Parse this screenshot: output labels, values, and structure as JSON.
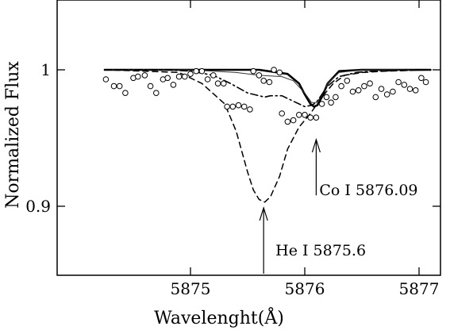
{
  "chart_data": {
    "type": "line",
    "title": "",
    "xlabel": "Wavelenght(Å)",
    "ylabel": "Normalized Flux",
    "xlim": [
      5874.25,
      5877.1
    ],
    "ylim": [
      0.845,
      1.05
    ],
    "x_ticks": [
      5875,
      5876,
      5877
    ],
    "x_tick_labels": [
      "5875",
      "5876",
      "5877"
    ],
    "y_ticks": [
      0.9,
      1.0
    ],
    "y_tick_labels": [
      "0.9",
      "1"
    ],
    "grid": false,
    "legend": "none",
    "series": [
      {
        "style": "solid-thick",
        "x": [
          5874.25,
          5875.0,
          5875.6,
          5875.85,
          5875.95,
          5876.0,
          5876.05,
          5876.08,
          5876.11,
          5876.15,
          5876.2,
          5876.3,
          5876.5,
          5877.1
        ],
        "y": [
          1.0,
          1.0,
          1.0,
          0.997,
          0.99,
          0.982,
          0.975,
          0.973,
          0.974,
          0.98,
          0.99,
          0.999,
          1.0,
          1.0
        ]
      },
      {
        "style": "solid-thin",
        "x": [
          5874.25,
          5875.0,
          5875.4,
          5875.6,
          5875.8,
          5875.9,
          5876.0,
          5876.06,
          5876.1,
          5876.15,
          5876.2,
          5876.3,
          5876.5,
          5877.1
        ],
        "y": [
          1.0,
          1.0,
          0.998,
          0.996,
          0.995,
          0.992,
          0.983,
          0.976,
          0.976,
          0.981,
          0.99,
          0.998,
          1.0,
          1.0
        ]
      },
      {
        "style": "dash-dot",
        "x": [
          5874.25,
          5874.8,
          5875.0,
          5875.2,
          5875.35,
          5875.5,
          5875.6,
          5875.65,
          5875.7,
          5875.8,
          5875.9,
          5876.0,
          5876.06,
          5876.1,
          5876.2,
          5876.3,
          5876.45,
          5876.6,
          5877.1
        ],
        "y": [
          1.0,
          1.0,
          0.999,
          0.996,
          0.99,
          0.983,
          0.981,
          0.98,
          0.981,
          0.981,
          0.977,
          0.973,
          0.974,
          0.976,
          0.988,
          0.995,
          0.998,
          0.999,
          1.0
        ]
      },
      {
        "style": "dashed",
        "x": [
          5874.25,
          5874.6,
          5874.9,
          5875.1,
          5875.3,
          5875.4,
          5875.5,
          5875.55,
          5875.6,
          5875.65,
          5875.7,
          5875.78,
          5875.85,
          5875.95,
          5876.05,
          5876.15,
          5876.25,
          5876.35,
          5876.5,
          5876.7,
          5877.1
        ],
        "y": [
          1.0,
          0.999,
          0.998,
          0.99,
          0.975,
          0.955,
          0.925,
          0.912,
          0.905,
          0.903,
          0.907,
          0.922,
          0.942,
          0.958,
          0.968,
          0.98,
          0.99,
          0.996,
          0.998,
          0.999,
          1.0
        ]
      }
    ],
    "observed_points": {
      "style": "open-circle",
      "x": [
        5874.26,
        5874.33,
        5874.38,
        5874.43,
        5874.5,
        5874.54,
        5874.6,
        5874.65,
        5874.7,
        5874.76,
        5874.8,
        5874.85,
        5874.9,
        5874.95,
        5875.0,
        5875.05,
        5875.1,
        5875.15,
        5875.2,
        5875.24,
        5875.29,
        5875.32,
        5875.37,
        5875.42,
        5875.47,
        5875.52,
        5875.55,
        5875.6,
        5875.64,
        5875.69,
        5875.73,
        5875.78,
        5875.8,
        5875.85,
        5875.9,
        5875.95,
        5876.0,
        5876.05,
        5876.1,
        5876.15,
        5876.19,
        5876.23,
        5876.27,
        5876.32,
        5876.37,
        5876.42,
        5876.47,
        5876.52,
        5876.57,
        5876.62,
        5876.67,
        5876.72,
        5876.77,
        5876.82,
        5876.87,
        5876.92,
        5876.97,
        5877.02,
        5877.06
      ],
      "y": [
        0.993,
        0.988,
        0.988,
        0.983,
        0.994,
        0.995,
        0.996,
        0.988,
        0.983,
        0.993,
        0.994,
        0.989,
        0.995,
        0.995,
        0.997,
        0.999,
        0.999,
        0.993,
        0.996,
        0.99,
        0.99,
        0.973,
        0.973,
        0.974,
        0.973,
        0.971,
        0.999,
        0.996,
        0.992,
        0.991,
        1.0,
        0.998,
        0.968,
        0.962,
        0.963,
        0.967,
        0.967,
        0.965,
        0.965,
        0.975,
        0.98,
        0.976,
        0.98,
        0.988,
        0.992,
        0.984,
        0.985,
        0.988,
        0.99,
        0.98,
        0.986,
        0.982,
        0.984,
        0.991,
        0.989,
        0.986,
        0.985,
        0.994,
        0.991
      ]
    },
    "annotations": [
      {
        "text": "He I 5875.6",
        "arrow_x": 5875.64,
        "arrow_y_tip": 0.9,
        "arrow_y_tail": 0.846
      },
      {
        "text": "Co I 5876.09",
        "arrow_x": 5876.1,
        "arrow_y_tip": 0.95,
        "arrow_y_tail": 0.908
      }
    ]
  }
}
